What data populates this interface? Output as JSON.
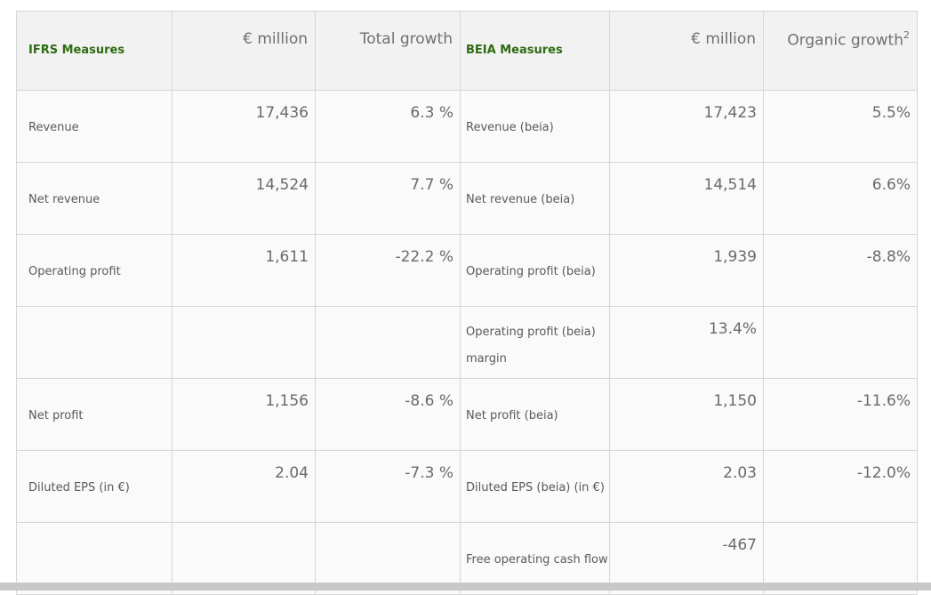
{
  "header": {
    "ifrs_label": "IFRS Measures",
    "ifrs_value_label": "€ million",
    "ifrs_growth_label": "Total growth",
    "beia_label": "BEIA Measures",
    "beia_value_label": "€ million",
    "beia_growth_label": "Organic growth",
    "beia_growth_footnote": "2"
  },
  "rows": [
    {
      "ifrs_label": "Revenue",
      "ifrs_value": "17,436",
      "ifrs_growth": "6.3 %",
      "beia_label": "Revenue (beia)",
      "beia_value": "17,423",
      "beia_growth": "5.5%"
    },
    {
      "ifrs_label": "Net revenue",
      "ifrs_value": "14,524",
      "ifrs_growth": "7.7 %",
      "beia_label": "Net revenue (beia)",
      "beia_value": "14,514",
      "beia_growth": "6.6%"
    },
    {
      "ifrs_label": "Operating profit",
      "ifrs_value": "1,611",
      "ifrs_growth": "-22.2 %",
      "beia_label": "Operating profit (beia)",
      "beia_value": "1,939",
      "beia_growth": "-8.8%"
    },
    {
      "ifrs_label": "",
      "ifrs_value": "",
      "ifrs_growth": "",
      "beia_label": "Operating profit (beia) margin",
      "beia_value": "13.4%",
      "beia_growth": ""
    },
    {
      "ifrs_label": "Net profit",
      "ifrs_value": "1,156",
      "ifrs_growth": "-8.6 %",
      "beia_label": "Net profit (beia)",
      "beia_value": "1,150",
      "beia_growth": "-11.6%"
    },
    {
      "ifrs_label": "Diluted EPS (in €)",
      "ifrs_value": "2.04",
      "ifrs_growth": "-7.3 %",
      "beia_label": "Diluted EPS (beia) (in €)",
      "beia_value": "2.03",
      "beia_growth": "-12.0%"
    },
    {
      "ifrs_label": "",
      "ifrs_value": "",
      "ifrs_growth": "",
      "beia_label": "Free operating cash flow",
      "beia_value": "-467",
      "beia_growth": ""
    }
  ]
}
